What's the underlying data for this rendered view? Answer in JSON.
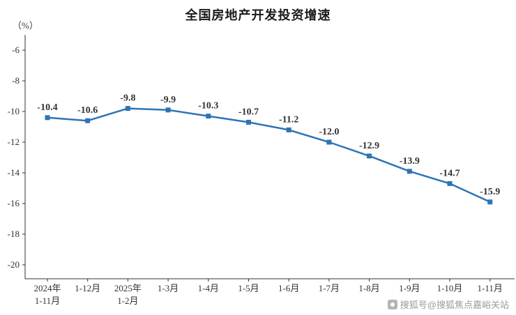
{
  "chart": {
    "title": "全国房地产开发投资增速",
    "unit": "（%）",
    "watermark": "搜狐号@搜狐焦点嘉峪关站"
  },
  "chart_data": {
    "type": "line",
    "title": "全国房地产开发投资增速",
    "ylabel": "（%）",
    "categories": [
      "2024年\n1-11月",
      "1-12月",
      "2025年\n1-2月",
      "1-3月",
      "1-4月",
      "1-5月",
      "1-6月",
      "1-7月",
      "1-8月",
      "1-9月",
      "1-10月",
      "1-11月"
    ],
    "values": [
      -10.4,
      -10.6,
      -9.8,
      -9.9,
      -10.3,
      -10.7,
      -11.2,
      -12.0,
      -12.9,
      -13.9,
      -14.7,
      -15.9
    ],
    "data_labels": [
      "-10.4",
      "-10.6",
      "-9.8",
      "-9.9",
      "-10.3",
      "-10.7",
      "-11.2",
      "-12.0",
      "-12.9",
      "-13.9",
      "-14.7",
      "-15.9"
    ],
    "yticks": [
      -6,
      -8,
      -10,
      -12,
      -14,
      -16,
      -18,
      -20
    ],
    "ylim": [
      -20.9,
      -5.0
    ],
    "grid": false,
    "legend": "none",
    "line_color": "#2e74b5",
    "marker": "square",
    "axis_color": "#333333",
    "label_color": "#333333",
    "tick_color": "#333333"
  }
}
